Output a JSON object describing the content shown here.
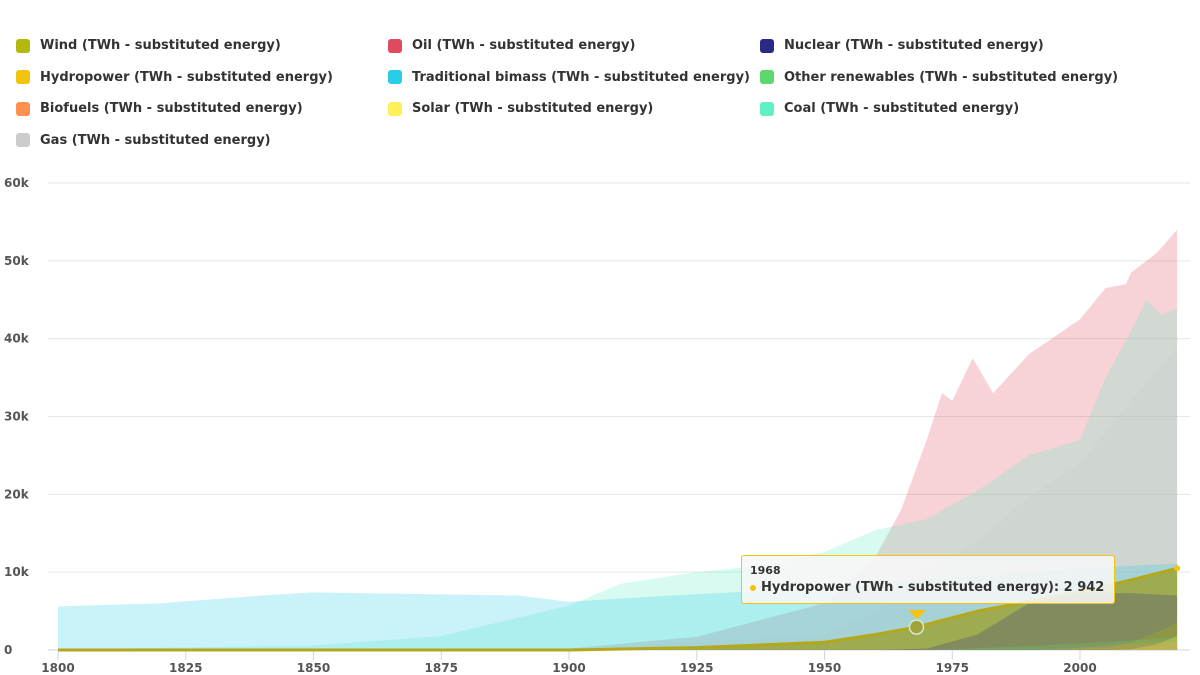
{
  "chart_data": {
    "type": "area",
    "xlim": [
      1800,
      2019
    ],
    "ylim": [
      0,
      60000
    ],
    "x_ticks": [
      "1800",
      "1825",
      "1850",
      "1875",
      "1900",
      "1925",
      "1950",
      "1975",
      "2000"
    ],
    "y_ticks": [
      "0",
      "10k",
      "20k",
      "30k",
      "40k",
      "50k",
      "60k"
    ],
    "grid": "horizontal",
    "legend_position": "top",
    "series": [
      {
        "name": "Wind (TWh - substituted energy)",
        "color": "#b3b80f",
        "points": [
          [
            1800,
            0
          ],
          [
            1995,
            0
          ],
          [
            2005,
            300
          ],
          [
            2010,
            1000
          ],
          [
            2015,
            2300
          ],
          [
            2019,
            3500
          ]
        ]
      },
      {
        "name": "Oil (TWh - substituted energy)",
        "color": "#e04a5e",
        "points": [
          [
            1800,
            0
          ],
          [
            1870,
            0
          ],
          [
            1900,
            200
          ],
          [
            1925,
            1700
          ],
          [
            1950,
            6000
          ],
          [
            1960,
            12000
          ],
          [
            1965,
            18000
          ],
          [
            1970,
            27000
          ],
          [
            1973,
            33000
          ],
          [
            1975,
            32000
          ],
          [
            1979,
            37500
          ],
          [
            1983,
            33000
          ],
          [
            1990,
            38000
          ],
          [
            2000,
            42500
          ],
          [
            2005,
            46500
          ],
          [
            2009,
            47000
          ],
          [
            2010,
            48500
          ],
          [
            2015,
            51000
          ],
          [
            2019,
            54000
          ]
        ]
      },
      {
        "name": "Nuclear (TWh - substituted energy)",
        "color": "#2a2a86",
        "points": [
          [
            1800,
            0
          ],
          [
            1960,
            0
          ],
          [
            1970,
            200
          ],
          [
            1980,
            2000
          ],
          [
            1990,
            6000
          ],
          [
            2000,
            7300
          ],
          [
            2010,
            7300
          ],
          [
            2019,
            7000
          ]
        ]
      },
      {
        "name": "Hydropower (TWh - substituted energy)",
        "color": "#f2c40f",
        "points": [
          [
            1800,
            0
          ],
          [
            1900,
            0
          ],
          [
            1925,
            300
          ],
          [
            1950,
            1000
          ],
          [
            1960,
            2000
          ],
          [
            1968,
            2942
          ],
          [
            1980,
            5000
          ],
          [
            2000,
            7500
          ],
          [
            2010,
            9000
          ],
          [
            2019,
            10500
          ]
        ]
      },
      {
        "name": "Traditional bimass (TWh - substituted energy)",
        "color": "#2acde6",
        "points": [
          [
            1800,
            5600
          ],
          [
            1820,
            6000
          ],
          [
            1840,
            7000
          ],
          [
            1850,
            7400
          ],
          [
            1870,
            7200
          ],
          [
            1890,
            7000
          ],
          [
            1900,
            6200
          ],
          [
            1920,
            7000
          ],
          [
            1950,
            8000
          ],
          [
            1970,
            9000
          ],
          [
            2000,
            10500
          ],
          [
            2019,
            11100
          ]
        ]
      },
      {
        "name": "Other renewables (TWh - substituted energy)",
        "color": "#5ed86e",
        "points": [
          [
            1800,
            0
          ],
          [
            1970,
            0
          ],
          [
            1990,
            500
          ],
          [
            2010,
            1200
          ],
          [
            2019,
            1700
          ]
        ]
      },
      {
        "name": "Biofuels (TWh - substituted energy)",
        "color": "#ff9150",
        "points": [
          [
            1800,
            0
          ],
          [
            1990,
            0
          ],
          [
            2000,
            300
          ],
          [
            2010,
            800
          ],
          [
            2019,
            1100
          ]
        ]
      },
      {
        "name": "Solar (TWh - substituted energy)",
        "color": "#fff05a",
        "points": [
          [
            1800,
            0
          ],
          [
            2005,
            0
          ],
          [
            2010,
            100
          ],
          [
            2015,
            700
          ],
          [
            2019,
            1800
          ]
        ]
      },
      {
        "name": "Coal (TWh - substituted energy)",
        "color": "#60f0c4",
        "points": [
          [
            1800,
            97
          ],
          [
            1850,
            570
          ],
          [
            1875,
            1800
          ],
          [
            1900,
            5700
          ],
          [
            1910,
            8500
          ],
          [
            1925,
            10000
          ],
          [
            1940,
            11000
          ],
          [
            1950,
            12600
          ],
          [
            1960,
            15400
          ],
          [
            1970,
            16800
          ],
          [
            1980,
            20500
          ],
          [
            1990,
            25000
          ],
          [
            2000,
            27000
          ],
          [
            2005,
            35000
          ],
          [
            2010,
            41000
          ],
          [
            2013,
            45000
          ],
          [
            2016,
            43000
          ],
          [
            2019,
            44000
          ]
        ]
      },
      {
        "name": "Gas (TWh - substituted energy)",
        "color": "#cccccc",
        "points": [
          [
            1800,
            0
          ],
          [
            1900,
            60
          ],
          [
            1925,
            1000
          ],
          [
            1950,
            2000
          ],
          [
            1960,
            5000
          ],
          [
            1970,
            10000
          ],
          [
            1980,
            14000
          ],
          [
            1990,
            19700
          ],
          [
            2000,
            24000
          ],
          [
            2010,
            32000
          ],
          [
            2019,
            39000
          ]
        ]
      }
    ],
    "tooltip": {
      "year": "1968",
      "label": "Hydropower (TWh - substituted energy): 2 942"
    }
  }
}
